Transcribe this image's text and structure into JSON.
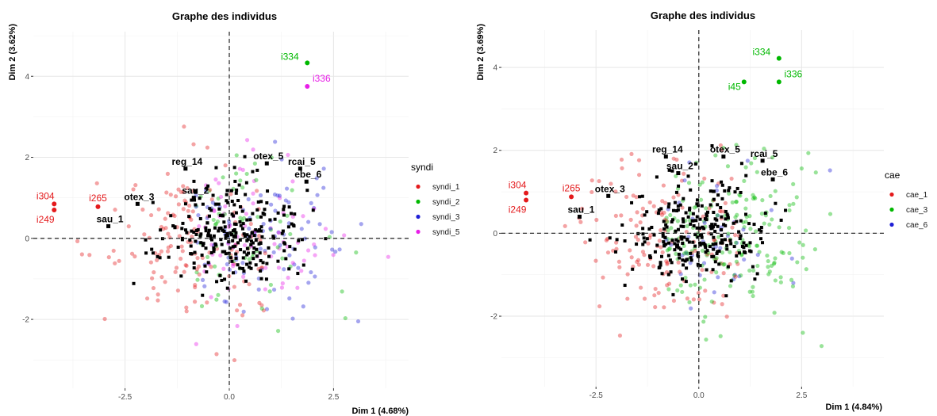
{
  "chart_data": [
    {
      "type": "scatter",
      "title": "Graphe des individus",
      "xlabel": "Dim 1 (4.68%)",
      "ylabel": "Dim 2 (3.62%)",
      "xlim": [
        -4.7,
        4.3
      ],
      "ylim": [
        -3.7,
        5.1
      ],
      "xticks": [
        -2.5,
        0.0,
        2.5
      ],
      "xtick_labels": [
        "-2.5",
        "0.0",
        "2.5"
      ],
      "yticks": [
        -2,
        0,
        2,
        4
      ],
      "ytick_labels": [
        "-2",
        "0",
        "2",
        "4"
      ],
      "grid": true,
      "legend": {
        "title": "syndi",
        "placement": "right"
      },
      "series": [
        {
          "name": "syndi_1",
          "color": "#e41a1c"
        },
        {
          "name": "syndi_2",
          "color": "#00b800"
        },
        {
          "name": "syndi_3",
          "color": "#1f1fd6"
        },
        {
          "name": "syndi_5",
          "color": "#e81ee8"
        }
      ],
      "highlighted": [
        {
          "label": "i334",
          "x": 1.87,
          "y": 4.33,
          "color": "#00b800"
        },
        {
          "label": "i336",
          "x": 1.87,
          "y": 3.75,
          "color": "#e81ee8"
        },
        {
          "label": "i304",
          "x": -4.2,
          "y": 0.85,
          "color": "#e41a1c"
        },
        {
          "label": "i249",
          "x": -4.2,
          "y": 0.7,
          "color": "#e41a1c"
        },
        {
          "label": "i265",
          "x": -3.15,
          "y": 0.78,
          "color": "#e41a1c"
        }
      ],
      "variable_points": [
        {
          "label": "otex_5",
          "x": 0.9,
          "y": 1.85
        },
        {
          "label": "rcai_5",
          "x": 1.7,
          "y": 1.72
        },
        {
          "label": "reg_14",
          "x": -1.05,
          "y": 1.72
        },
        {
          "label": "ebe_6",
          "x": 1.85,
          "y": 1.4
        },
        {
          "label": "sau_2",
          "x": -0.85,
          "y": 1.0
        },
        {
          "label": "otex_3",
          "x": -2.2,
          "y": 0.85
        },
        {
          "label": "sau_1",
          "x": -2.9,
          "y": 0.3
        }
      ],
      "ellipse_points": 380
    },
    {
      "type": "scatter",
      "title": "Graphe des individus",
      "xlabel": "Dim 1 (4.84%)",
      "ylabel": "Dim 2 (3.69%)",
      "xlim": [
        -4.8,
        4.5
      ],
      "ylim": [
        -3.7,
        4.9
      ],
      "xticks": [
        -2.5,
        0.0,
        2.5
      ],
      "xtick_labels": [
        "-2.5",
        "0.0",
        "2.5"
      ],
      "yticks": [
        -2,
        0,
        2,
        4
      ],
      "ytick_labels": [
        "-2",
        "0",
        "2",
        "4"
      ],
      "grid": true,
      "legend": {
        "title": "cae",
        "placement": "right"
      },
      "series": [
        {
          "name": "cae_1",
          "color": "#e41a1c"
        },
        {
          "name": "cae_3",
          "color": "#00b800"
        },
        {
          "name": "cae_6",
          "color": "#1f1fd6"
        }
      ],
      "highlighted": [
        {
          "label": "i334",
          "x": 1.95,
          "y": 4.22,
          "color": "#00b800"
        },
        {
          "label": "i336",
          "x": 1.95,
          "y": 3.65,
          "color": "#00b800"
        },
        {
          "label": "i45",
          "x": 1.1,
          "y": 3.65,
          "color": "#00b800"
        },
        {
          "label": "i304",
          "x": -4.2,
          "y": 0.97,
          "color": "#e41a1c"
        },
        {
          "label": "i249",
          "x": -4.2,
          "y": 0.8,
          "color": "#e41a1c"
        },
        {
          "label": "i265",
          "x": -3.1,
          "y": 0.88,
          "color": "#e41a1c"
        }
      ],
      "variable_points": [
        {
          "label": "otex_5",
          "x": 0.6,
          "y": 1.85
        },
        {
          "label": "rcai_5",
          "x": 1.55,
          "y": 1.75
        },
        {
          "label": "reg_14",
          "x": -0.8,
          "y": 1.85
        },
        {
          "label": "ebe_6",
          "x": 1.8,
          "y": 1.3
        },
        {
          "label": "sau_2",
          "x": -0.5,
          "y": 1.45
        },
        {
          "label": "otex_3",
          "x": -2.2,
          "y": 0.9
        },
        {
          "label": "sau_1",
          "x": -2.9,
          "y": 0.4
        }
      ],
      "ellipse_points": 380
    }
  ]
}
